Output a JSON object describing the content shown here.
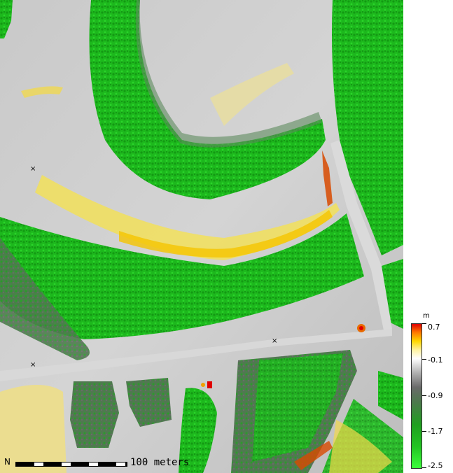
{
  "map": {
    "type": "elevation-difference raster over aerial terrain",
    "markers": [
      "×",
      "×",
      "×"
    ]
  },
  "legend": {
    "unit": "m",
    "labels": [
      "0.7",
      "-0.1",
      "-0.9",
      "-1.7",
      "-2.5"
    ],
    "colors": {
      "high": "#e00000",
      "upper": "#ffd700",
      "zero": "#ffffff",
      "mid": "#6a6a6a",
      "low": "#22c422",
      "lowest": "#3cff3c"
    }
  },
  "scalebar": {
    "north_symbol": "N",
    "label": "100 meters"
  }
}
